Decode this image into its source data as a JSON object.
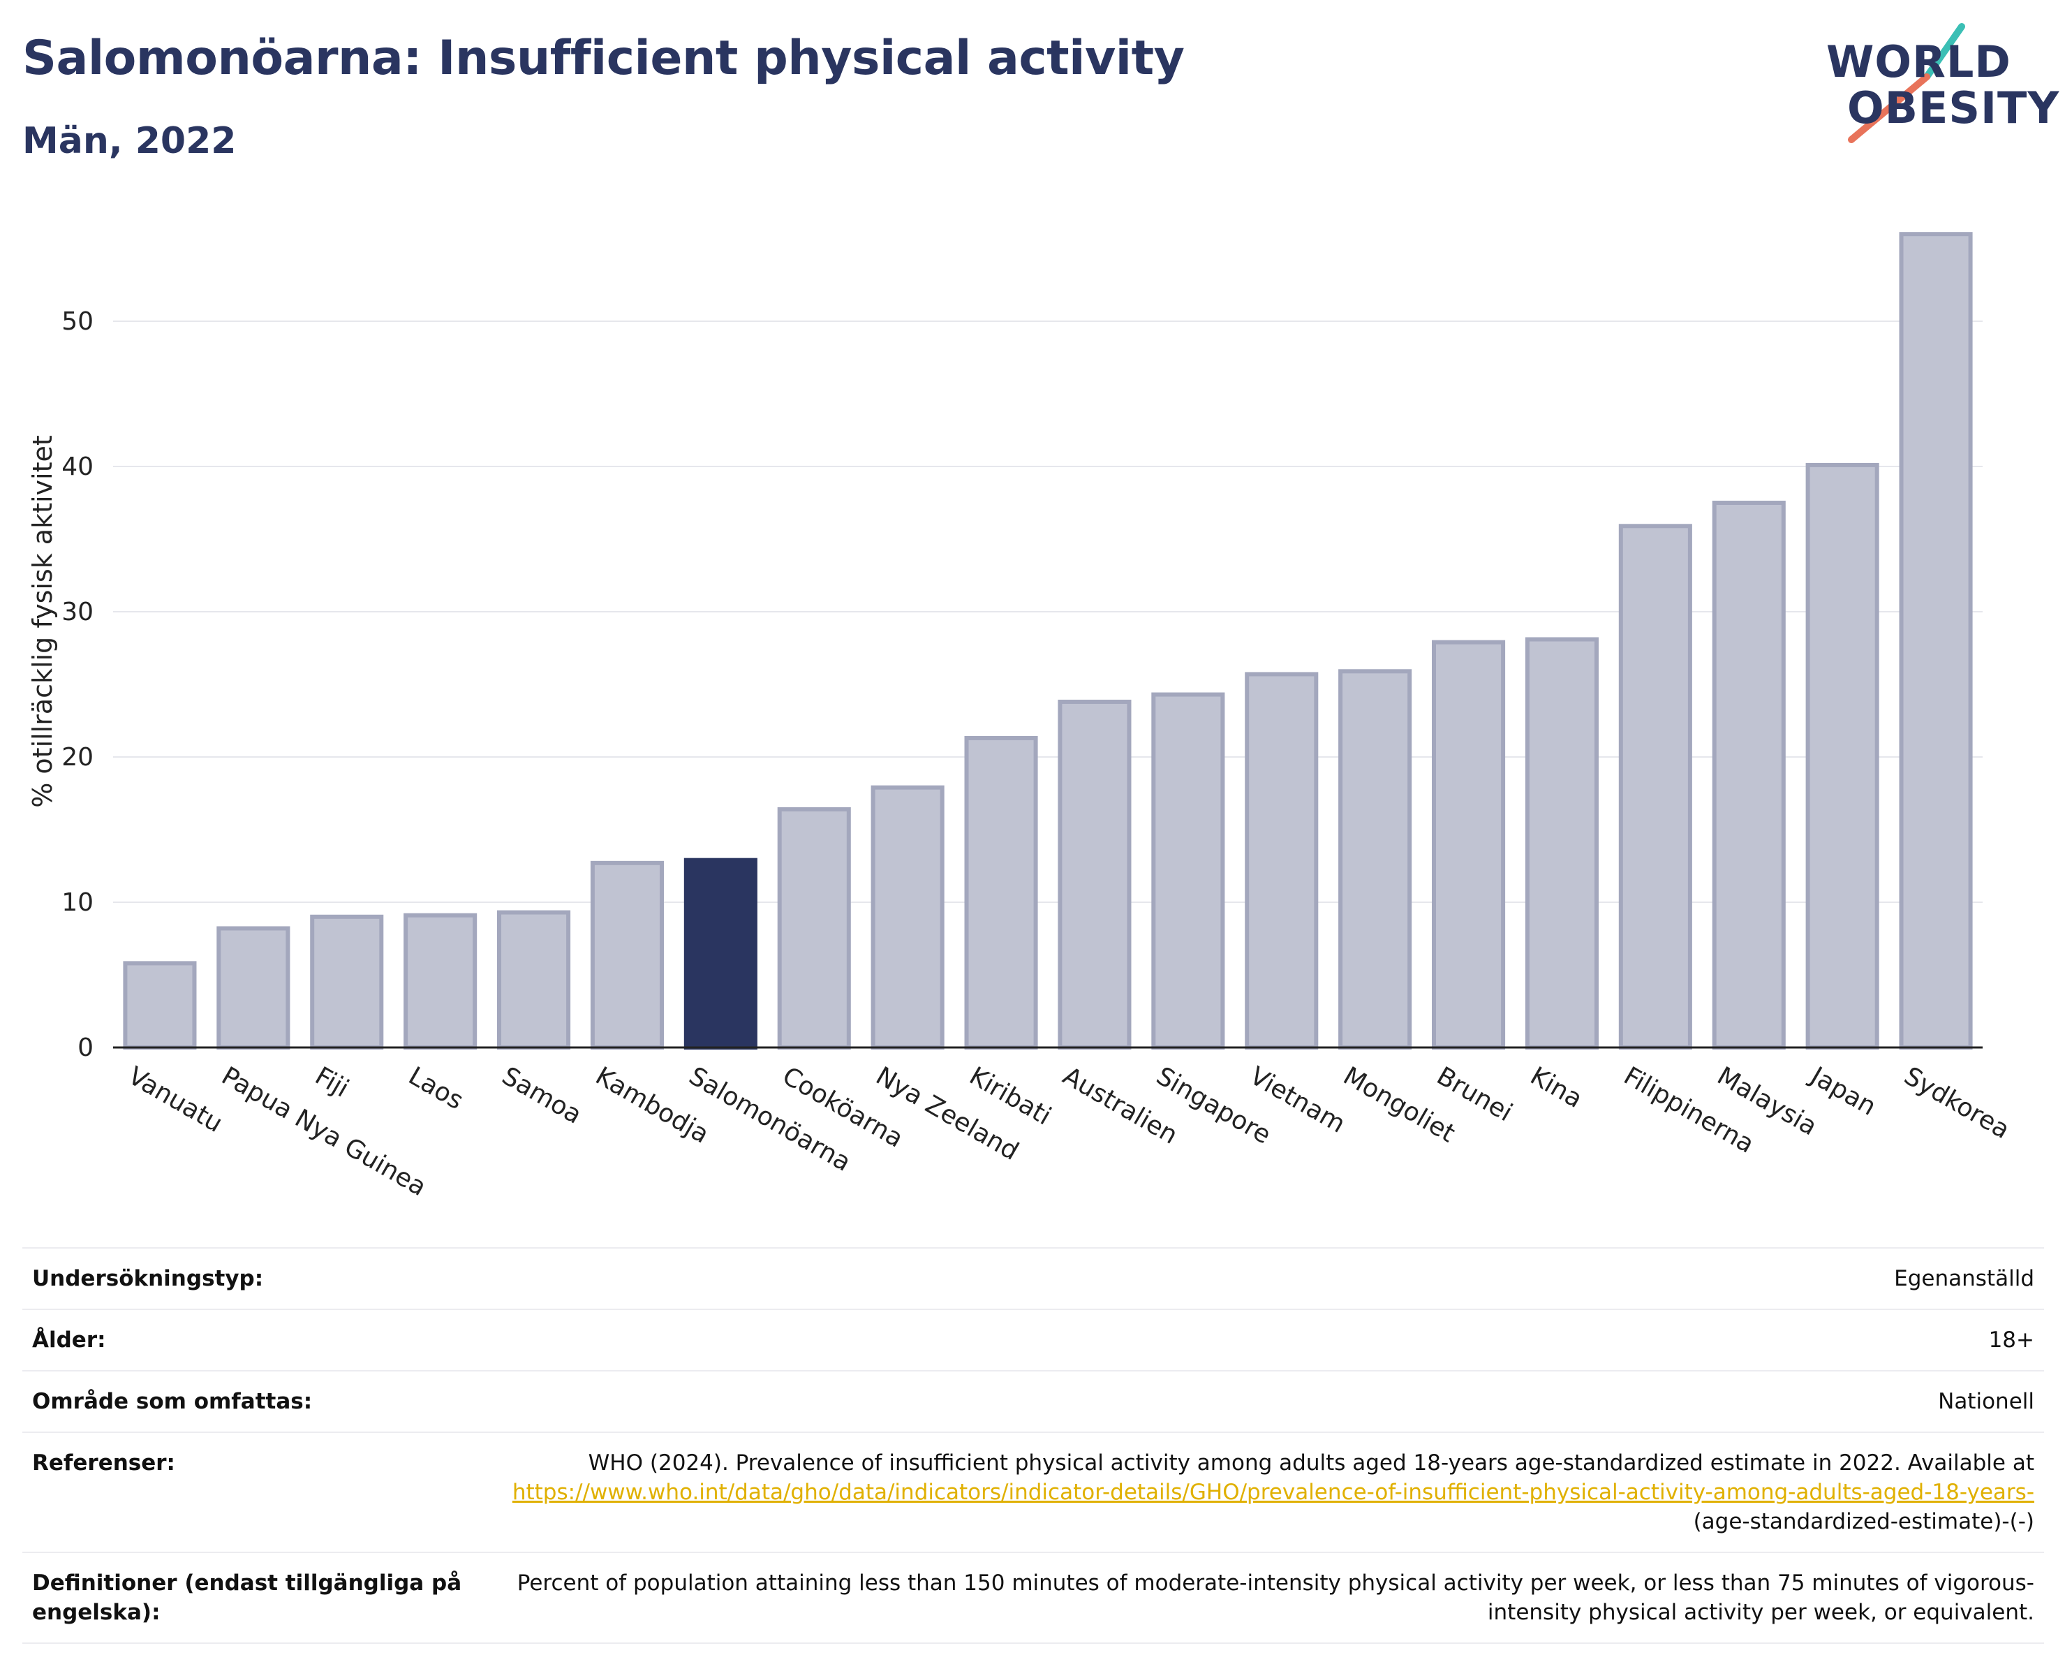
{
  "header": {
    "title": "Salomonöarna: Insufficient physical activity",
    "subtitle": "Män, 2022"
  },
  "logo": {
    "line1": "WORLD",
    "line2": "OBESITY",
    "accent_teal": "#3bbfb5",
    "accent_coral": "#e8735a"
  },
  "colors": {
    "highlight_bar": "#2a3560",
    "other_bar": "#c0c3d2",
    "other_bar_edge": "#a3a7bd",
    "grid": "#e6e7ec",
    "text_dark": "#2a3560"
  },
  "chart_data": {
    "type": "bar",
    "title": "Salomonöarna: Insufficient physical activity",
    "subtitle": "Män, 2022",
    "ylabel": "% otillräcklig fysisk aktivitet",
    "xlabel": "",
    "ylim": [
      0,
      56
    ],
    "yticks": [
      0,
      10,
      20,
      30,
      40,
      50
    ],
    "grid": true,
    "highlight": "Salomonöarna",
    "categories": [
      "Vanuatu",
      "Papua Nya Guinea",
      "Fiji",
      "Laos",
      "Samoa",
      "Kambodja",
      "Salomonöarna",
      "Cooköarna",
      "Nya Zeeland",
      "Kiribati",
      "Australien",
      "Singapore",
      "Vietnam",
      "Mongoliet",
      "Brunei",
      "Kina",
      "Filippinerna",
      "Malaysia",
      "Japan",
      "Sydkorea"
    ],
    "values": [
      5.8,
      8.2,
      9.0,
      9.1,
      9.3,
      12.7,
      12.9,
      16.4,
      17.9,
      21.3,
      23.8,
      24.3,
      25.7,
      25.9,
      27.9,
      28.1,
      35.9,
      37.5,
      40.1,
      56.0
    ]
  },
  "meta": {
    "rows": [
      {
        "label": "Undersökningstyp:",
        "value": "Egenanställd"
      },
      {
        "label": "Ålder:",
        "value": "18+"
      },
      {
        "label": "Område som omfattas:",
        "value": "Nationell"
      }
    ],
    "references": {
      "label": "Referenser:",
      "text": "WHO (2024). Prevalence of insufficient physical activity among adults aged 18-years age-standardized estimate in 2022. Available at",
      "link": "https://www.who.int/data/gho/data/indicators/indicator-details/GHO/prevalence-of-insufficient-physical-activity-among-adults-aged-18-years-",
      "suffix": "(age-standardized-estimate)-(-)"
    },
    "definitions": {
      "label": "Definitioner (endast tillgängliga på engelska):",
      "value": "Percent of population attaining less than 150 minutes of moderate-intensity physical activity per week, or less than 75 minutes of vigorous-intensity physical activity per week, or equivalent."
    }
  }
}
